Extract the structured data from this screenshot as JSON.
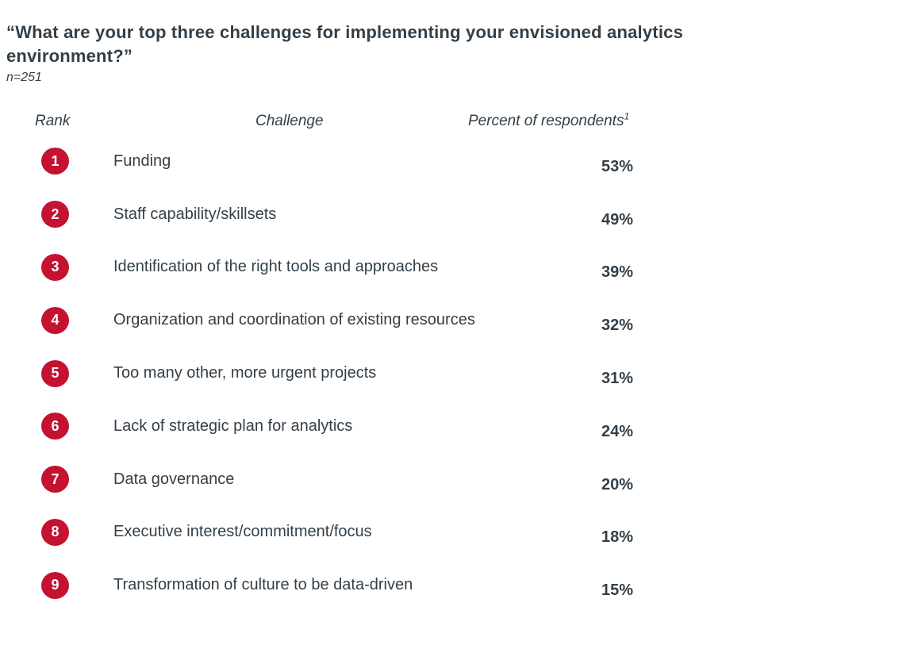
{
  "header": {
    "title": "“What are your top three challenges for implementing your envisioned analytics environment?”",
    "sample_size": "n=251"
  },
  "table": {
    "columns": {
      "rank": "Rank",
      "challenge": "Challenge",
      "percent": "Percent of respondents",
      "percent_sup": "1"
    },
    "rows": [
      {
        "rank": "1",
        "challenge": "Funding",
        "percent": "53%"
      },
      {
        "rank": "2",
        "challenge": "Staff capability/skillsets",
        "percent": "49%"
      },
      {
        "rank": "3",
        "challenge": "Identification of the right tools and approaches",
        "percent": "39%"
      },
      {
        "rank": "4",
        "challenge": "Organization and coordination of existing resources",
        "percent": "32%"
      },
      {
        "rank": "5",
        "challenge": "Too many other, more urgent projects",
        "percent": "31%"
      },
      {
        "rank": "6",
        "challenge": "Lack of strategic plan for analytics",
        "percent": "24%"
      },
      {
        "rank": "7",
        "challenge": "Data governance",
        "percent": "20%"
      },
      {
        "rank": "8",
        "challenge": "Executive interest/commitment/focus",
        "percent": "18%"
      },
      {
        "rank": "9",
        "challenge": "Transformation of culture to be data-driven",
        "percent": "15%"
      }
    ]
  },
  "colors": {
    "badge_red": "#C41230",
    "text_dark": "#333F48"
  },
  "chart_data": {
    "type": "table",
    "title": "“What are your top three challenges for implementing your envisioned analytics environment?”",
    "subtitle": "n=251",
    "columns": [
      "Rank",
      "Challenge",
      "Percent of respondents¹"
    ],
    "categories": [
      "Funding",
      "Staff capability/skillsets",
      "Identification of the right tools and approaches",
      "Organization and coordination of existing resources",
      "Too many other, more urgent projects",
      "Lack of strategic plan for analytics",
      "Data governance",
      "Executive interest/commitment/focus",
      "Transformation of culture to be data-driven"
    ],
    "values": [
      53,
      49,
      39,
      32,
      31,
      24,
      20,
      18,
      15
    ],
    "value_unit": "%",
    "ranks": [
      1,
      2,
      3,
      4,
      5,
      6,
      7,
      8,
      9
    ]
  }
}
